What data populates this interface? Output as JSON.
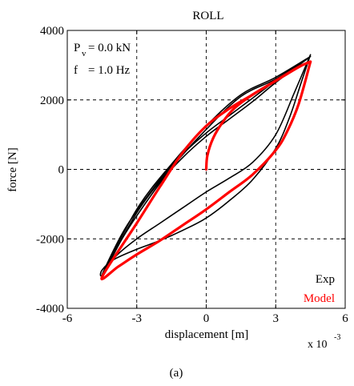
{
  "chart_data": {
    "type": "line",
    "title": "ROLL",
    "xlabel": "displacement [m]",
    "ylabel": "force [N]",
    "x_scale_note": {
      "base": "x 10",
      "exponent": "-3"
    },
    "xlim": [
      -6,
      6
    ],
    "ylim": [
      -4000,
      4000
    ],
    "xticks": [
      -6,
      -3,
      0,
      3,
      6
    ],
    "yticks": [
      -4000,
      -2000,
      0,
      2000,
      4000
    ],
    "xtick_labels": [
      "-6",
      "-3",
      "0",
      "3",
      "6"
    ],
    "ytick_labels": [
      "-4000",
      "-2000",
      "0",
      "2000",
      "4000"
    ],
    "grid": true,
    "annotations": {
      "pv_symbol": "P",
      "pv_sub": "v",
      "pv_value": "= 0.0 kN",
      "f_symbol": "f",
      "f_value": "= 1.0 Hz"
    },
    "legend_position": "bottom-right",
    "caption": "(a)",
    "series": [
      {
        "name": "Exp",
        "color": "#000000",
        "loops": [
          {
            "x": [
              4.5,
              3.8,
              3.0,
              2.0,
              1.0,
              0.0,
              -1.0,
              -2.0,
              -3.0,
              -3.9,
              -4.5,
              -4.5,
              -4.0,
              -3.0,
              -2.0,
              -1.0,
              0.0,
              1.0,
              2.0,
              3.0,
              3.6,
              4.1,
              4.5
            ],
            "y": [
              3300,
              2200,
              1000,
              200,
              -250,
              -650,
              -1100,
              -1550,
              -2000,
              -2500,
              -3050,
              -2900,
              -2600,
              -2300,
              -2050,
              -1750,
              -1400,
              -900,
              -300,
              600,
              1500,
              2500,
              3300
            ]
          },
          {
            "x": [
              4.5,
              3.0,
              1.5,
              0.0,
              -1.5,
              -3.0,
              -4.5,
              -3.5,
              -2.0,
              -1.0,
              0.0,
              1.0,
              2.0,
              3.0,
              4.5
            ],
            "y": [
              3250,
              2650,
              2150,
              1250,
              150,
              -1150,
              -3050,
              -1700,
              -300,
              450,
              1050,
              1550,
              2050,
              2550,
              3250
            ]
          },
          {
            "x": [
              4.4,
              3.0,
              1.5,
              0.0,
              -1.5,
              -3.0,
              -4.5,
              -3.5,
              -2.0,
              -1.0,
              0.0,
              1.0,
              2.0,
              3.0,
              4.4
            ],
            "y": [
              3200,
              2600,
              2100,
              1150,
              50,
              -1250,
              -3100,
              -1850,
              -400,
              350,
              950,
              1450,
              1950,
              2500,
              3200
            ]
          }
        ]
      },
      {
        "name": "Model",
        "color": "#ff0000",
        "loops": [
          {
            "x": [
              0.0,
              0.05,
              0.3,
              0.7,
              1.2,
              2.0,
              3.0,
              4.0,
              4.5
            ],
            "y": [
              0,
              400,
              900,
              1350,
              1750,
              2150,
              2550,
              2950,
              3100
            ]
          },
          {
            "x": [
              4.5,
              4.0,
              3.5,
              3.0,
              2.0,
              1.0,
              0.0,
              -1.0,
              -2.0,
              -3.0,
              -3.8,
              -4.5,
              -3.0,
              -2.0,
              -1.0,
              0.0,
              1.0,
              2.0,
              3.0,
              4.0,
              4.5
            ],
            "y": [
              3100,
              1900,
              1100,
              550,
              -150,
              -650,
              -1150,
              -1600,
              -2050,
              -2450,
              -2800,
              -3100,
              -1550,
              -500,
              500,
              1250,
              1750,
              2150,
              2550,
              2950,
              3100
            ]
          }
        ]
      }
    ]
  }
}
